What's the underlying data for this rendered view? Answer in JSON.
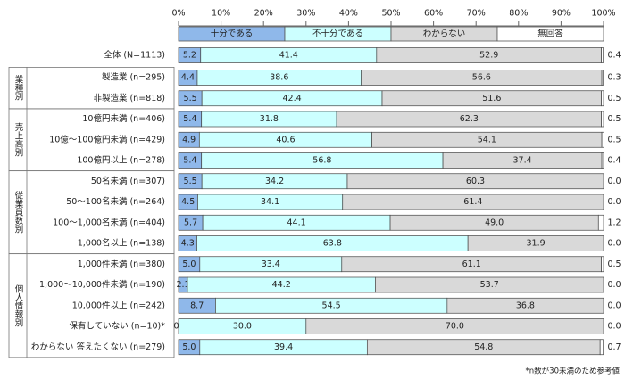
{
  "chart_data": {
    "type": "stacked_bar_horizontal",
    "categories": [
      "全体 (N=1113)",
      "製造業 (n=295)",
      "非製造業 (n=818)",
      "10億円未満 (n=406)",
      "10億～100億円未満 (n=429)",
      "100億円以上 (n=278)",
      "50名未満 (n=307)",
      "50～100名未満 (n=264)",
      "100～1,000名未満 (n=404)",
      "1,000名以上 (n=138)",
      "1,000件未満 (n=380)",
      "1,000～10,000件未満 (n=190)",
      "10,000件以上 (n=242)",
      "保有していない (n=10)*",
      "わからない 答えたくない (n=279)"
    ],
    "category_groups": [
      null,
      "業種別",
      "業種別",
      "売上高別",
      "売上高別",
      "売上高別",
      "従業員数別",
      "従業員数別",
      "従業員数別",
      "従業員数別",
      "個人情報別",
      "個人情報別",
      "個人情報別",
      "個人情報別",
      "個人情報別"
    ],
    "series": [
      {
        "name": "十分である",
        "color": "#8fb8ea",
        "values": [
          5.2,
          4.4,
          5.5,
          5.4,
          4.9,
          5.4,
          5.5,
          4.5,
          5.7,
          4.3,
          5.0,
          2.1,
          8.7,
          0.0,
          5.0
        ],
        "value_labels": [
          "5.2",
          "4.4",
          "5.5",
          "5.4",
          "4.9",
          "5.4",
          "5.5",
          "4.5",
          "5.7",
          "4.3",
          "5.0",
          "2.1",
          "8.7",
          "0.0",
          "5.0"
        ]
      },
      {
        "name": "不十分である",
        "color": "#ccffff",
        "values": [
          41.4,
          38.6,
          42.4,
          31.8,
          40.6,
          56.8,
          34.2,
          34.1,
          44.1,
          63.8,
          33.4,
          44.2,
          54.5,
          30.0,
          39.4
        ],
        "value_labels": [
          "41.4",
          "38.6",
          "42.4",
          "31.8",
          "40.6",
          "56.8",
          "34.2",
          "34.1",
          "44.1",
          "63.8",
          "33.4",
          "44.2",
          "54.5",
          "30.0",
          "39.4"
        ]
      },
      {
        "name": "わからない",
        "color": "#d9d9d9",
        "values": [
          52.9,
          56.6,
          51.6,
          62.3,
          54.1,
          37.4,
          60.3,
          61.4,
          49.0,
          31.9,
          61.1,
          53.7,
          36.8,
          70.0,
          54.8
        ],
        "value_labels": [
          "52.9",
          "56.6",
          "51.6",
          "62.3",
          "54.1",
          "37.4",
          "60.3",
          "61.4",
          "49.0",
          "31.9",
          "61.1",
          "53.7",
          "36.8",
          "70.0",
          "54.8"
        ]
      },
      {
        "name": "無回答",
        "color": "#ffffff",
        "values": [
          0.4,
          0.3,
          0.5,
          0.5,
          0.5,
          0.4,
          0.0,
          0.0,
          1.2,
          0.0,
          0.5,
          0.0,
          0.0,
          0.0,
          0.7
        ],
        "value_labels": [
          "0.4",
          "0.3",
          "0.5",
          "0.5",
          "0.5",
          "0.4",
          "0.0",
          "0.0",
          "1.2",
          "0.0",
          "0.5",
          "0.0",
          "0.0",
          "0.0",
          "0.7"
        ]
      }
    ],
    "xlim": [
      0,
      100
    ],
    "xticks": [
      {
        "value": 0,
        "label": "0%"
      },
      {
        "value": 10,
        "label": "10%"
      },
      {
        "value": 20,
        "label": "20%"
      },
      {
        "value": 30,
        "label": "30%"
      },
      {
        "value": 40,
        "label": "40%"
      },
      {
        "value": 50,
        "label": "50%"
      },
      {
        "value": 60,
        "label": "60%"
      },
      {
        "value": 70,
        "label": "70%"
      },
      {
        "value": 80,
        "label": "80%"
      },
      {
        "value": 90,
        "label": "90%"
      },
      {
        "value": 100,
        "label": "100%"
      }
    ],
    "grid": false,
    "footnote": "*n数が30未満のため参考値"
  }
}
